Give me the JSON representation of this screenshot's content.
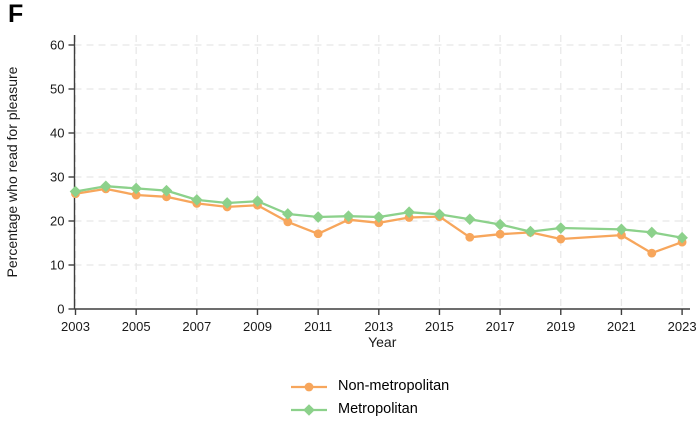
{
  "panel_label": "F",
  "chart_data": {
    "type": "line",
    "title": "",
    "xlabel": "Year",
    "ylabel": "Percentage who read for pleasure",
    "xlim": [
      2003,
      2023
    ],
    "ylim": [
      0,
      60
    ],
    "yticks": [
      0,
      10,
      20,
      30,
      40,
      50,
      60
    ],
    "xticks": [
      2003,
      2005,
      2007,
      2009,
      2011,
      2013,
      2015,
      2017,
      2019,
      2021,
      2023
    ],
    "grid": "dashed-both-axes",
    "legend_position": "bottom-center",
    "x": [
      2003,
      2004,
      2005,
      2006,
      2007,
      2008,
      2009,
      2010,
      2011,
      2012,
      2013,
      2014,
      2015,
      2016,
      2017,
      2018,
      2019,
      2020,
      2021,
      2022,
      2023
    ],
    "series": [
      {
        "name": "Non-metropolitan",
        "color": "#F7A65C",
        "marker": "circle",
        "values": [
          26.2,
          27.3,
          25.9,
          25.5,
          24.0,
          23.2,
          23.6,
          19.8,
          17.1,
          20.3,
          19.6,
          20.8,
          21.0,
          16.3,
          17.0,
          17.4,
          15.9,
          null,
          16.8,
          12.7,
          15.2
        ]
      },
      {
        "name": "Metropolitan",
        "color": "#8CD18B",
        "marker": "diamond",
        "values": [
          26.7,
          27.9,
          27.4,
          26.9,
          24.8,
          24.1,
          24.5,
          21.6,
          20.9,
          21.1,
          20.9,
          22.0,
          21.5,
          20.4,
          19.2,
          17.6,
          18.4,
          null,
          18.1,
          17.4,
          16.2
        ]
      }
    ]
  }
}
